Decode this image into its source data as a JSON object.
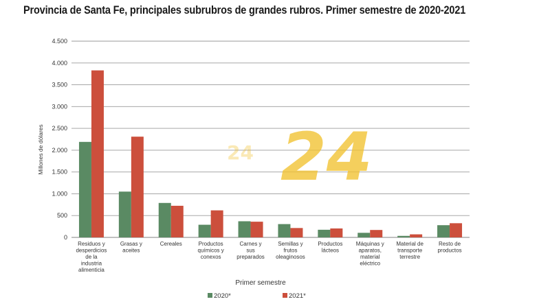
{
  "title": "Provincia de Santa Fe, principales subrubros de grandes rubros. Primer semestre de 2020-2021",
  "colors": {
    "s2020": "#5a8a63",
    "s2021": "#cc4f3c",
    "grid": "#9a9a9a",
    "watermark": "#f2c230"
  },
  "watermark": {
    "text": "24"
  },
  "chart_data": {
    "type": "bar",
    "title": "Provincia de Santa Fe, principales subrubros de grandes rubros. Primer semestre de 2020-2021",
    "xlabel": "Primer semestre",
    "ylabel": "Millones de dólares",
    "ylim": [
      0,
      4500
    ],
    "yticks": [
      0,
      500,
      1000,
      1500,
      2000,
      2500,
      3000,
      3500,
      4000,
      4500
    ],
    "ytick_labels": [
      "0",
      "500",
      "1.000",
      "1.500",
      "2.000",
      "2.500",
      "3.000",
      "3.500",
      "4.000",
      "4.500"
    ],
    "grid": true,
    "legend_position": "bottom",
    "categories": [
      [
        "Residuos y",
        "desperdicios",
        "de la",
        "industria",
        "alimenticia"
      ],
      [
        "Grasas y",
        "aceites"
      ],
      [
        "Cereales"
      ],
      [
        "Productos",
        "químicos y",
        "conexos"
      ],
      [
        "Carnes y",
        "sus",
        "preparados"
      ],
      [
        "Semillas y",
        "frutos",
        "oleaginosos"
      ],
      [
        "Productos",
        "lácteos"
      ],
      [
        "Máquinas y",
        "aparatos,",
        "material",
        "eléctrico"
      ],
      [
        "Material de",
        "transporte",
        "terrestre"
      ],
      [
        "Resto de",
        "productos"
      ]
    ],
    "series": [
      {
        "name": "2020*",
        "values": [
          2190,
          1050,
          790,
          290,
          370,
          305,
          175,
          105,
          35,
          280
        ]
      },
      {
        "name": "2021*",
        "values": [
          3830,
          2310,
          725,
          620,
          360,
          215,
          205,
          170,
          70,
          325
        ]
      }
    ]
  }
}
